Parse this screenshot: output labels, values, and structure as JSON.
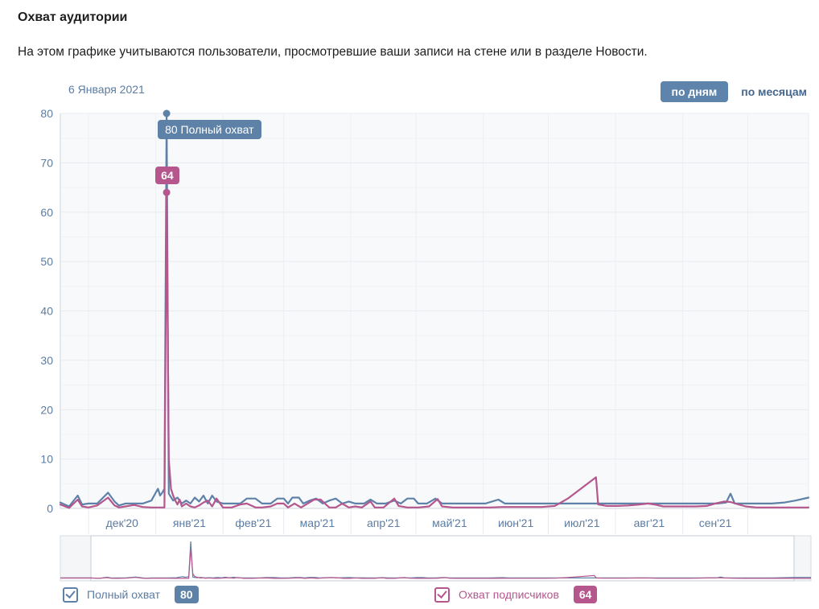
{
  "page": {
    "title": "Охват аудитории",
    "description": "На этом графике учитываются пользователи, просмотревшие ваши записи на стене или в разделе Новости."
  },
  "header": {
    "date_label": "6 Января 2021",
    "toggle_day": "по дням",
    "toggle_month": "по месяцам"
  },
  "tooltip": {
    "value": "80",
    "series": "Полный охват"
  },
  "point_badge": {
    "value": "64"
  },
  "legend": {
    "items": [
      {
        "label": "Полный охват",
        "value": "80",
        "color": "#5e81a8",
        "checked": true
      },
      {
        "label": "Охват подписчиков",
        "value": "64",
        "color": "#b5568d",
        "checked": true
      }
    ]
  },
  "colors": {
    "blue": "#5e81a8",
    "pink": "#b5568d",
    "axis_text": "#5b7ca3",
    "active_button_bg": "#5e84ac",
    "inactive_toggle_text": "#45678d"
  },
  "chart_data": {
    "type": "line",
    "title": "Охват аудитории",
    "grid": true,
    "legend_position": "bottom",
    "y_axis": {
      "min": 0,
      "max": 80,
      "tick_step": 10,
      "ticks": [
        0,
        10,
        20,
        30,
        40,
        50,
        60,
        70,
        80
      ]
    },
    "x_axis": {
      "unit": "day",
      "domain": [
        0,
        345
      ],
      "categories": [
        "дек'20",
        "янв'21",
        "фев'21",
        "мар'21",
        "апр'21",
        "май'21",
        "июн'21",
        "июл'21",
        "авг'21",
        "сен'21"
      ],
      "month_boundaries_day": [
        13,
        44,
        75,
        103,
        134,
        164,
        195,
        225,
        256,
        287,
        317
      ]
    },
    "highlight": {
      "date": "6 Января 2021",
      "day": 49,
      "full_reach": 80,
      "subscriber_reach": 64
    },
    "series": [
      {
        "name": "Полный охват",
        "color": "#5e81a8",
        "points": [
          [
            0,
            1.2
          ],
          [
            4,
            0.4
          ],
          [
            8,
            2.6
          ],
          [
            10,
            0.8
          ],
          [
            13,
            1
          ],
          [
            17,
            1
          ],
          [
            22,
            3.2
          ],
          [
            25,
            1.4
          ],
          [
            27,
            0.6
          ],
          [
            30,
            1
          ],
          [
            34,
            1
          ],
          [
            38,
            1
          ],
          [
            42,
            1.6
          ],
          [
            45,
            4
          ],
          [
            46,
            2.6
          ],
          [
            47,
            3.2
          ],
          [
            48,
            4
          ],
          [
            49,
            80
          ],
          [
            50,
            3
          ],
          [
            52,
            1.6
          ],
          [
            54,
            2.2
          ],
          [
            56,
            1
          ],
          [
            58,
            1.6
          ],
          [
            60,
            1
          ],
          [
            62,
            2.2
          ],
          [
            64,
            1.4
          ],
          [
            66,
            2.6
          ],
          [
            68,
            1
          ],
          [
            70,
            2.6
          ],
          [
            72,
            1.4
          ],
          [
            75,
            1
          ],
          [
            79,
            1
          ],
          [
            83,
            1
          ],
          [
            86,
            2
          ],
          [
            90,
            2
          ],
          [
            93,
            1
          ],
          [
            97,
            1
          ],
          [
            100,
            2
          ],
          [
            103,
            2
          ],
          [
            105,
            1
          ],
          [
            107,
            2.2
          ],
          [
            110,
            2.2
          ],
          [
            112,
            1
          ],
          [
            115,
            1.6
          ],
          [
            118,
            2
          ],
          [
            121,
            1
          ],
          [
            124,
            1.6
          ],
          [
            127,
            2
          ],
          [
            130,
            1
          ],
          [
            133,
            1.4
          ],
          [
            136,
            1
          ],
          [
            140,
            1
          ],
          [
            143,
            1.8
          ],
          [
            146,
            1
          ],
          [
            150,
            1
          ],
          [
            154,
            1.6
          ],
          [
            157,
            1
          ],
          [
            160,
            2
          ],
          [
            163,
            2
          ],
          [
            165,
            1
          ],
          [
            169,
            1
          ],
          [
            173,
            2
          ],
          [
            176,
            1
          ],
          [
            180,
            1
          ],
          [
            185,
            1
          ],
          [
            190,
            1
          ],
          [
            196,
            1
          ],
          [
            202,
            1.8
          ],
          [
            205,
            1
          ],
          [
            210,
            1
          ],
          [
            215,
            1
          ],
          [
            220,
            1
          ],
          [
            226,
            1
          ],
          [
            232,
            1
          ],
          [
            238,
            1
          ],
          [
            244,
            1
          ],
          [
            250,
            1
          ],
          [
            256,
            1
          ],
          [
            262,
            1
          ],
          [
            268,
            1
          ],
          [
            274,
            1
          ],
          [
            280,
            1
          ],
          [
            286,
            1
          ],
          [
            292,
            1
          ],
          [
            298,
            1
          ],
          [
            303,
            1
          ],
          [
            307,
            1.2
          ],
          [
            309,
            3
          ],
          [
            311,
            1
          ],
          [
            316,
            1
          ],
          [
            322,
            1
          ],
          [
            328,
            1
          ],
          [
            334,
            1.2
          ],
          [
            339,
            1.6
          ],
          [
            345,
            2.2
          ]
        ]
      },
      {
        "name": "Охват подписчиков",
        "color": "#b5568d",
        "points": [
          [
            0,
            0.8
          ],
          [
            4,
            0.1
          ],
          [
            8,
            1.8
          ],
          [
            10,
            0.4
          ],
          [
            13,
            0.2
          ],
          [
            17,
            0.6
          ],
          [
            22,
            2.2
          ],
          [
            25,
            0.6
          ],
          [
            27,
            0.2
          ],
          [
            30,
            0.4
          ],
          [
            34,
            0.7
          ],
          [
            38,
            0.3
          ],
          [
            42,
            0.2
          ],
          [
            46,
            0.2
          ],
          [
            48,
            0.2
          ],
          [
            49,
            64
          ],
          [
            50,
            10
          ],
          [
            51,
            4
          ],
          [
            52,
            2.6
          ],
          [
            53,
            1.6
          ],
          [
            54,
            0.8
          ],
          [
            55,
            1.8
          ],
          [
            56,
            0.4
          ],
          [
            58,
            1
          ],
          [
            60,
            0.4
          ],
          [
            62,
            0.2
          ],
          [
            64,
            0.6
          ],
          [
            66,
            1.2
          ],
          [
            68,
            1.6
          ],
          [
            70,
            0.4
          ],
          [
            72,
            2
          ],
          [
            75,
            0.2
          ],
          [
            79,
            0.2
          ],
          [
            83,
            0.8
          ],
          [
            86,
            1
          ],
          [
            90,
            0.2
          ],
          [
            93,
            0.2
          ],
          [
            97,
            0.4
          ],
          [
            100,
            1
          ],
          [
            103,
            1
          ],
          [
            105,
            0.2
          ],
          [
            108,
            1
          ],
          [
            111,
            0.2
          ],
          [
            114,
            1
          ],
          [
            117,
            1.8
          ],
          [
            120,
            1.8
          ],
          [
            122,
            1
          ],
          [
            124,
            0.2
          ],
          [
            127,
            0.2
          ],
          [
            130,
            1
          ],
          [
            133,
            0.2
          ],
          [
            136,
            0.4
          ],
          [
            139,
            0.2
          ],
          [
            143,
            1.4
          ],
          [
            145,
            0.2
          ],
          [
            149,
            0.2
          ],
          [
            154,
            2
          ],
          [
            156,
            0.5
          ],
          [
            160,
            0.2
          ],
          [
            165,
            0.2
          ],
          [
            170,
            0.4
          ],
          [
            174,
            1.9
          ],
          [
            176,
            0.4
          ],
          [
            181,
            0.2
          ],
          [
            186,
            0.2
          ],
          [
            192,
            0.2
          ],
          [
            198,
            0.2
          ],
          [
            204,
            0.3
          ],
          [
            210,
            0.3
          ],
          [
            216,
            0.3
          ],
          [
            222,
            0.3
          ],
          [
            228,
            0.5
          ],
          [
            234,
            2
          ],
          [
            240,
            4
          ],
          [
            247,
            6.3
          ],
          [
            248,
            0.8
          ],
          [
            252,
            0.5
          ],
          [
            257,
            0.5
          ],
          [
            262,
            0.6
          ],
          [
            267,
            0.8
          ],
          [
            271,
            1
          ],
          [
            274,
            0.8
          ],
          [
            278,
            0.4
          ],
          [
            283,
            0.4
          ],
          [
            288,
            0.4
          ],
          [
            293,
            0.4
          ],
          [
            298,
            0.5
          ],
          [
            302,
            1
          ],
          [
            306,
            1.4
          ],
          [
            309,
            1.3
          ],
          [
            312,
            0.9
          ],
          [
            316,
            0.4
          ],
          [
            321,
            0.2
          ],
          [
            327,
            0.2
          ],
          [
            333,
            0.2
          ],
          [
            339,
            0.2
          ],
          [
            345,
            0.2
          ]
        ]
      }
    ]
  }
}
